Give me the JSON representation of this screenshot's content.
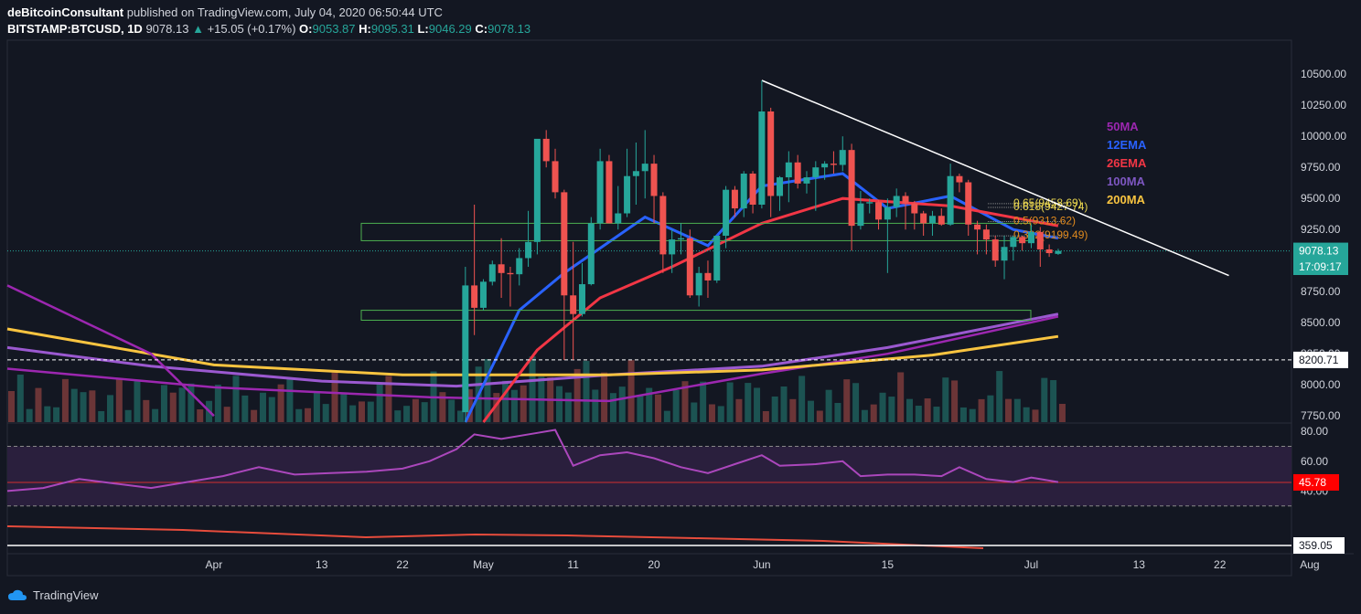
{
  "header": {
    "publisher": "deBitcoinConsultant",
    "published_text": "published on TradingView.com, July 04, 2020 06:50:44 UTC",
    "symbol": "BITSTAMP:BTCUSD, 1D",
    "last": "9078.13",
    "change": "+15.05 (+0.17%)",
    "open_label": "O:",
    "open": "9053.87",
    "high_label": "H:",
    "high": "9095.31",
    "low_label": "L:",
    "low": "9046.29",
    "close_label": "C:",
    "close": "9078.13"
  },
  "footer": {
    "brand": "TradingView"
  },
  "colors": {
    "background": "#131722",
    "up": "#26a69a",
    "down": "#ef5350",
    "ma50": "#9c27b0",
    "ema12": "#2962ff",
    "ema26": "#f23645",
    "ma100": "#7e57c2",
    "ma200": "#f9c440",
    "rsi": "#ab47bc",
    "fib": "#d4a017",
    "zone": "#4caf50"
  },
  "chart_data": {
    "type": "candlestick",
    "symbol": "BITSTAMP:BTCUSD",
    "interval": "1D",
    "yticks": [
      "10500.00",
      "10250.00",
      "10000.00",
      "9750.00",
      "9500.00",
      "9250.00",
      "9000.00",
      "8750.00",
      "8500.00",
      "8250.00",
      "8000.00",
      "7750.00"
    ],
    "ylim": [
      7700,
      10700
    ],
    "xticks": [
      "Apr",
      "13",
      "22",
      "May",
      "11",
      "20",
      "Jun",
      "15",
      "Jul",
      "13",
      "22",
      "Aug"
    ],
    "price_label": "9078.13",
    "countdown_label": "17:09:17",
    "hline_label": "8200.71",
    "hline_value": 8200.71,
    "legend": [
      {
        "name": "50MA",
        "color": "#9c27b0"
      },
      {
        "name": "12EMA",
        "color": "#2962ff"
      },
      {
        "name": "26EMA",
        "color": "#f23645"
      },
      {
        "name": "100MA",
        "color": "#7e57c2"
      },
      {
        "name": "200MA",
        "color": "#f9c440"
      }
    ],
    "fib_levels": [
      {
        "label": "0.65(9458.69)",
        "value": 9458.69
      },
      {
        "label": "0.618(9427.74)",
        "value": 9427.74
      },
      {
        "label": "0.5(9313.62)",
        "value": 9313.62
      },
      {
        "label": "0.382(9199.49)",
        "value": 9199.49
      }
    ],
    "zones": [
      {
        "low": 9160,
        "high": 9300
      },
      {
        "low": 8520,
        "high": 8600
      }
    ],
    "trendline": {
      "from": {
        "date": "2020-06-01",
        "price": 10450
      },
      "to": {
        "date": "2020-07-23",
        "price": 8880
      }
    },
    "candles": [
      {
        "date": "2020-04-29",
        "o": 7780,
        "h": 8950,
        "l": 7700,
        "c": 8800
      },
      {
        "date": "2020-04-30",
        "o": 8800,
        "h": 9450,
        "l": 8400,
        "c": 8620
      },
      {
        "date": "2020-05-01",
        "o": 8620,
        "h": 8850,
        "l": 8600,
        "c": 8830
      },
      {
        "date": "2020-05-02",
        "o": 8830,
        "h": 9000,
        "l": 8800,
        "c": 8970
      },
      {
        "date": "2020-05-03",
        "o": 8970,
        "h": 9180,
        "l": 8700,
        "c": 8900
      },
      {
        "date": "2020-05-04",
        "o": 8900,
        "h": 8950,
        "l": 8630,
        "c": 8890
      },
      {
        "date": "2020-05-05",
        "o": 8890,
        "h": 9100,
        "l": 8800,
        "c": 9020
      },
      {
        "date": "2020-05-06",
        "o": 9020,
        "h": 9400,
        "l": 8950,
        "c": 9150
      },
      {
        "date": "2020-05-07",
        "o": 9150,
        "h": 9950,
        "l": 9050,
        "c": 9980
      },
      {
        "date": "2020-05-08",
        "o": 9980,
        "h": 10050,
        "l": 9750,
        "c": 9800
      },
      {
        "date": "2020-05-09",
        "o": 9800,
        "h": 9900,
        "l": 9500,
        "c": 9550
      },
      {
        "date": "2020-05-10",
        "o": 9550,
        "h": 9570,
        "l": 8200,
        "c": 8720
      },
      {
        "date": "2020-05-11",
        "o": 8720,
        "h": 9150,
        "l": 8200,
        "c": 8570
      },
      {
        "date": "2020-05-12",
        "o": 8570,
        "h": 8980,
        "l": 8550,
        "c": 8810
      },
      {
        "date": "2020-05-13",
        "o": 8810,
        "h": 9350,
        "l": 8800,
        "c": 9300
      },
      {
        "date": "2020-05-14",
        "o": 9300,
        "h": 9900,
        "l": 9250,
        "c": 9800
      },
      {
        "date": "2020-05-15",
        "o": 9800,
        "h": 9850,
        "l": 9300,
        "c": 9300
      },
      {
        "date": "2020-05-16",
        "o": 9300,
        "h": 9600,
        "l": 9250,
        "c": 9380
      },
      {
        "date": "2020-05-17",
        "o": 9380,
        "h": 9900,
        "l": 9350,
        "c": 9680
      },
      {
        "date": "2020-05-18",
        "o": 9680,
        "h": 9950,
        "l": 9450,
        "c": 9720
      },
      {
        "date": "2020-05-19",
        "o": 9720,
        "h": 10050,
        "l": 9500,
        "c": 9780
      },
      {
        "date": "2020-05-20",
        "o": 9780,
        "h": 9850,
        "l": 9300,
        "c": 9520
      },
      {
        "date": "2020-05-21",
        "o": 9520,
        "h": 9550,
        "l": 8900,
        "c": 9050
      },
      {
        "date": "2020-05-22",
        "o": 9050,
        "h": 9250,
        "l": 8900,
        "c": 9170
      },
      {
        "date": "2020-05-23",
        "o": 9170,
        "h": 9300,
        "l": 9050,
        "c": 9180
      },
      {
        "date": "2020-05-24",
        "o": 9180,
        "h": 9250,
        "l": 8700,
        "c": 8720
      },
      {
        "date": "2020-05-25",
        "o": 8720,
        "h": 8950,
        "l": 8630,
        "c": 8900
      },
      {
        "date": "2020-05-26",
        "o": 8900,
        "h": 9000,
        "l": 8700,
        "c": 8840
      },
      {
        "date": "2020-05-27",
        "o": 8840,
        "h": 9200,
        "l": 8820,
        "c": 9200
      },
      {
        "date": "2020-05-28",
        "o": 9200,
        "h": 9600,
        "l": 9100,
        "c": 9570
      },
      {
        "date": "2020-05-29",
        "o": 9570,
        "h": 9600,
        "l": 9350,
        "c": 9420
      },
      {
        "date": "2020-05-30",
        "o": 9420,
        "h": 9720,
        "l": 9350,
        "c": 9700
      },
      {
        "date": "2020-05-31",
        "o": 9700,
        "h": 9720,
        "l": 9380,
        "c": 9450
      },
      {
        "date": "2020-06-01",
        "o": 9450,
        "h": 10450,
        "l": 9420,
        "c": 10200
      },
      {
        "date": "2020-06-02",
        "o": 10200,
        "h": 10230,
        "l": 9350,
        "c": 9520
      },
      {
        "date": "2020-06-03",
        "o": 9520,
        "h": 9680,
        "l": 9400,
        "c": 9670
      },
      {
        "date": "2020-06-04",
        "o": 9670,
        "h": 9880,
        "l": 9470,
        "c": 9790
      },
      {
        "date": "2020-06-05",
        "o": 9790,
        "h": 9850,
        "l": 9580,
        "c": 9620
      },
      {
        "date": "2020-06-06",
        "o": 9620,
        "h": 9720,
        "l": 9540,
        "c": 9670
      },
      {
        "date": "2020-06-07",
        "o": 9670,
        "h": 9800,
        "l": 9400,
        "c": 9750
      },
      {
        "date": "2020-06-08",
        "o": 9750,
        "h": 9800,
        "l": 9650,
        "c": 9780
      },
      {
        "date": "2020-06-09",
        "o": 9780,
        "h": 9880,
        "l": 9700,
        "c": 9770
      },
      {
        "date": "2020-06-10",
        "o": 9770,
        "h": 10000,
        "l": 9720,
        "c": 9890
      },
      {
        "date": "2020-06-11",
        "o": 9890,
        "h": 9940,
        "l": 9080,
        "c": 9280
      },
      {
        "date": "2020-06-12",
        "o": 9280,
        "h": 9560,
        "l": 9250,
        "c": 9460
      },
      {
        "date": "2020-06-13",
        "o": 9460,
        "h": 9500,
        "l": 9380,
        "c": 9470
      },
      {
        "date": "2020-06-14",
        "o": 9470,
        "h": 9490,
        "l": 9250,
        "c": 9330
      },
      {
        "date": "2020-06-15",
        "o": 9330,
        "h": 9500,
        "l": 8900,
        "c": 9430
      },
      {
        "date": "2020-06-16",
        "o": 9430,
        "h": 9580,
        "l": 9350,
        "c": 9520
      },
      {
        "date": "2020-06-17",
        "o": 9520,
        "h": 9550,
        "l": 9250,
        "c": 9460
      },
      {
        "date": "2020-06-18",
        "o": 9460,
        "h": 9480,
        "l": 9250,
        "c": 9380
      },
      {
        "date": "2020-06-19",
        "o": 9380,
        "h": 9400,
        "l": 9200,
        "c": 9300
      },
      {
        "date": "2020-06-20",
        "o": 9300,
        "h": 9400,
        "l": 9200,
        "c": 9360
      },
      {
        "date": "2020-06-21",
        "o": 9360,
        "h": 9420,
        "l": 9280,
        "c": 9290
      },
      {
        "date": "2020-06-22",
        "o": 9290,
        "h": 9780,
        "l": 9280,
        "c": 9680
      },
      {
        "date": "2020-06-23",
        "o": 9680,
        "h": 9700,
        "l": 9550,
        "c": 9630
      },
      {
        "date": "2020-06-24",
        "o": 9630,
        "h": 9650,
        "l": 9200,
        "c": 9290
      },
      {
        "date": "2020-06-25",
        "o": 9290,
        "h": 9320,
        "l": 9050,
        "c": 9250
      },
      {
        "date": "2020-06-26",
        "o": 9250,
        "h": 9290,
        "l": 9050,
        "c": 9170
      },
      {
        "date": "2020-06-27",
        "o": 9170,
        "h": 9200,
        "l": 8950,
        "c": 9000
      },
      {
        "date": "2020-06-28",
        "o": 9000,
        "h": 9200,
        "l": 8850,
        "c": 9110
      },
      {
        "date": "2020-06-29",
        "o": 9110,
        "h": 9200,
        "l": 9000,
        "c": 9190
      },
      {
        "date": "2020-06-30",
        "o": 9190,
        "h": 9200,
        "l": 9080,
        "c": 9140
      },
      {
        "date": "2020-07-01",
        "o": 9140,
        "h": 9290,
        "l": 9100,
        "c": 9230
      },
      {
        "date": "2020-07-02",
        "o": 9230,
        "h": 9270,
        "l": 8950,
        "c": 9090
      },
      {
        "date": "2020-07-03",
        "o": 9090,
        "h": 9130,
        "l": 9030,
        "c": 9060
      },
      {
        "date": "2020-07-04",
        "o": 9054,
        "h": 9095,
        "l": 9046,
        "c": 9078
      }
    ],
    "rsi": {
      "levels": [
        "80.00",
        "60.00",
        "40.00"
      ],
      "ylim": [
        20,
        85
      ],
      "upper_band": 70,
      "lower_band": 30,
      "value_label": "45.78",
      "points": [
        {
          "date": "2020-03-09",
          "v": 40
        },
        {
          "date": "2020-03-13",
          "v": 42
        },
        {
          "date": "2020-03-17",
          "v": 48
        },
        {
          "date": "2020-03-21",
          "v": 45
        },
        {
          "date": "2020-03-25",
          "v": 42
        },
        {
          "date": "2020-03-29",
          "v": 46
        },
        {
          "date": "2020-04-02",
          "v": 50
        },
        {
          "date": "2020-04-06",
          "v": 56
        },
        {
          "date": "2020-04-10",
          "v": 51
        },
        {
          "date": "2020-04-14",
          "v": 52
        },
        {
          "date": "2020-04-18",
          "v": 53
        },
        {
          "date": "2020-04-22",
          "v": 55
        },
        {
          "date": "2020-04-25",
          "v": 60
        },
        {
          "date": "2020-04-28",
          "v": 68
        },
        {
          "date": "2020-04-30",
          "v": 78
        },
        {
          "date": "2020-05-03",
          "v": 75
        },
        {
          "date": "2020-05-07",
          "v": 79
        },
        {
          "date": "2020-05-09",
          "v": 81
        },
        {
          "date": "2020-05-11",
          "v": 57
        },
        {
          "date": "2020-05-14",
          "v": 64
        },
        {
          "date": "2020-05-17",
          "v": 66
        },
        {
          "date": "2020-05-20",
          "v": 62
        },
        {
          "date": "2020-05-23",
          "v": 56
        },
        {
          "date": "2020-05-26",
          "v": 52
        },
        {
          "date": "2020-05-29",
          "v": 58
        },
        {
          "date": "2020-06-01",
          "v": 64
        },
        {
          "date": "2020-06-03",
          "v": 57
        },
        {
          "date": "2020-06-07",
          "v": 58
        },
        {
          "date": "2020-06-10",
          "v": 60
        },
        {
          "date": "2020-06-12",
          "v": 50
        },
        {
          "date": "2020-06-15",
          "v": 51
        },
        {
          "date": "2020-06-18",
          "v": 51
        },
        {
          "date": "2020-06-21",
          "v": 50
        },
        {
          "date": "2020-06-23",
          "v": 56
        },
        {
          "date": "2020-06-26",
          "v": 48
        },
        {
          "date": "2020-06-29",
          "v": 46
        },
        {
          "date": "2020-07-01",
          "v": 49
        },
        {
          "date": "2020-07-04",
          "v": 46
        }
      ]
    },
    "lower": {
      "value_label": "359.05"
    }
  }
}
